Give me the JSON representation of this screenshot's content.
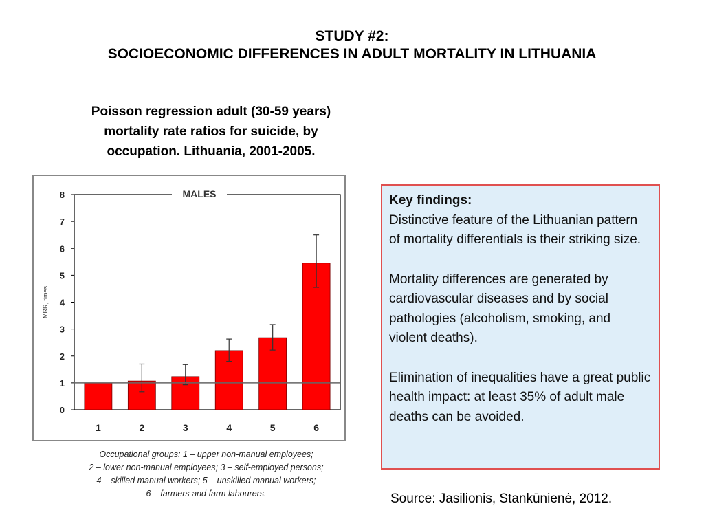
{
  "header": {
    "title_line1": "STUDY #2:",
    "title_line2": "SOCIOECONOMIC DIFFERENCES IN ADULT MORTALITY IN LITHUANIA",
    "subtitle_line1": "Poisson regression adult (30-59 years)",
    "subtitle_line2": "mortality rate ratios for suicide, by",
    "subtitle_line3": "occupation. Lithuania, 2001-2005."
  },
  "chart_data": {
    "type": "bar",
    "title": "MALES",
    "ylabel": "MRR, times",
    "xlabel": "",
    "categories": [
      "1",
      "2",
      "3",
      "4",
      "5",
      "6"
    ],
    "values": [
      1.0,
      1.07,
      1.23,
      2.2,
      2.68,
      5.45
    ],
    "error_low": [
      1.0,
      0.67,
      0.93,
      1.8,
      2.22,
      4.55
    ],
    "error_high": [
      1.0,
      1.7,
      1.68,
      2.63,
      3.17,
      6.5
    ],
    "reference_line": 1,
    "ylim": [
      0,
      8
    ],
    "yticks": [
      0,
      1,
      2,
      3,
      4,
      5,
      6,
      7,
      8
    ],
    "bar_color": "#ff0000",
    "grid": false
  },
  "caption": {
    "line1": "Occupational groups: 1 – upper non-manual employees;",
    "line2": "2 – lower non-manual employees; 3 – self-employed persons;",
    "line3": "4 – skilled manual workers; 5 – unskilled manual workers;",
    "line4": "6 – farmers and farm labourers."
  },
  "key_findings": {
    "heading": "Key findings:",
    "para1": "Distinctive feature of the Lithuanian pattern of mortality differentials is their striking size.",
    "para2": "Mortality differences are generated by cardiovascular diseases and by social pathologies (alcoholism, smoking, and violent deaths).",
    "para3": "Elimination of inequalities have a great public health impact: at least 35% of adult male deaths can be avoided."
  },
  "source": "Source: Jasilionis, Stankūnienė, 2012."
}
